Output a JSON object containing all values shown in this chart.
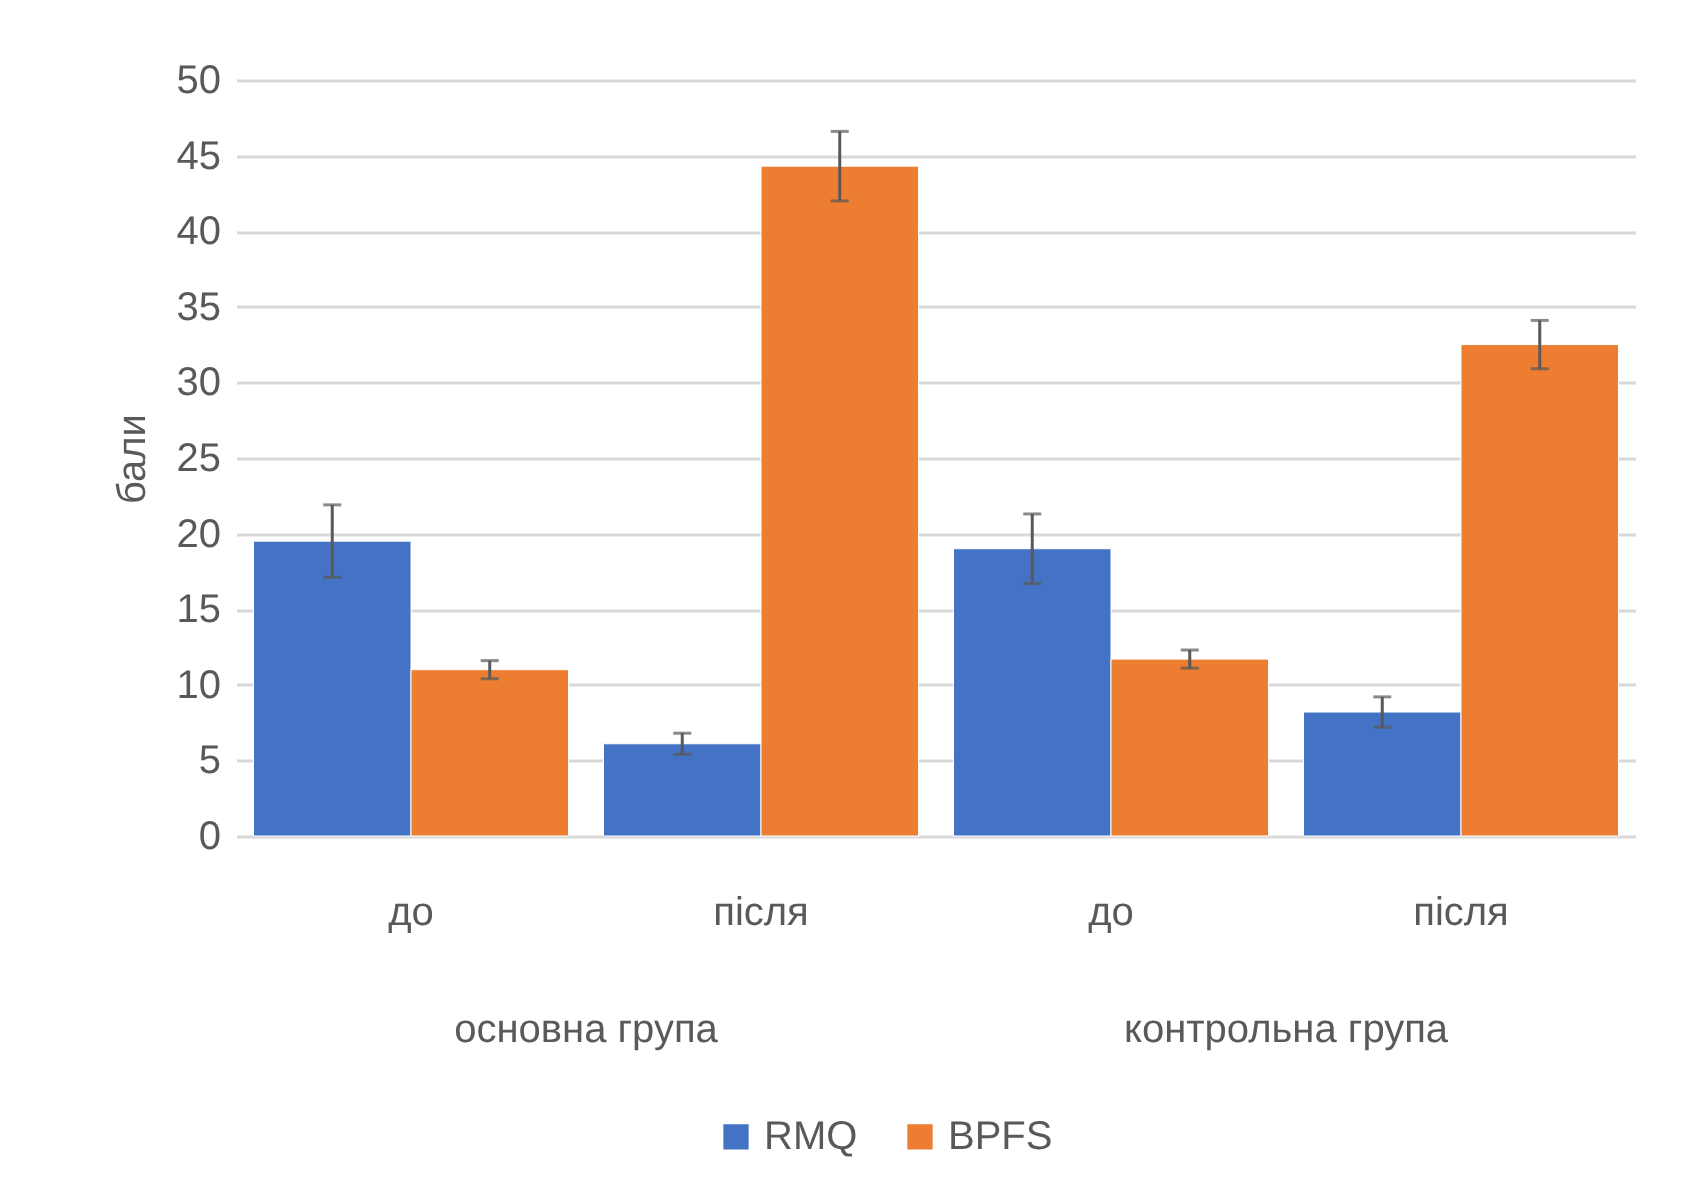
{
  "chart_data": {
    "type": "bar",
    "ylabel": "бали",
    "categories": [
      "до",
      "після",
      "до",
      "після"
    ],
    "annotations": [
      "основна група",
      "контрольна група"
    ],
    "series": [
      {
        "name": "RMQ",
        "color": "#4472c4",
        "values": [
          19.5,
          6.1,
          19.0,
          8.2
        ],
        "errors": [
          2.4,
          0.7,
          2.3,
          1.0
        ]
      },
      {
        "name": "BPFS",
        "color": "#ed7d31",
        "values": [
          11.0,
          44.3,
          11.7,
          32.5
        ],
        "errors": [
          0.6,
          2.3,
          0.6,
          1.6
        ]
      }
    ],
    "ylim": [
      0,
      50
    ],
    "yticks": [
      0,
      5,
      10,
      15,
      20,
      25,
      30,
      35,
      40,
      45,
      50
    ],
    "grid": "y",
    "legend": "bottom"
  }
}
